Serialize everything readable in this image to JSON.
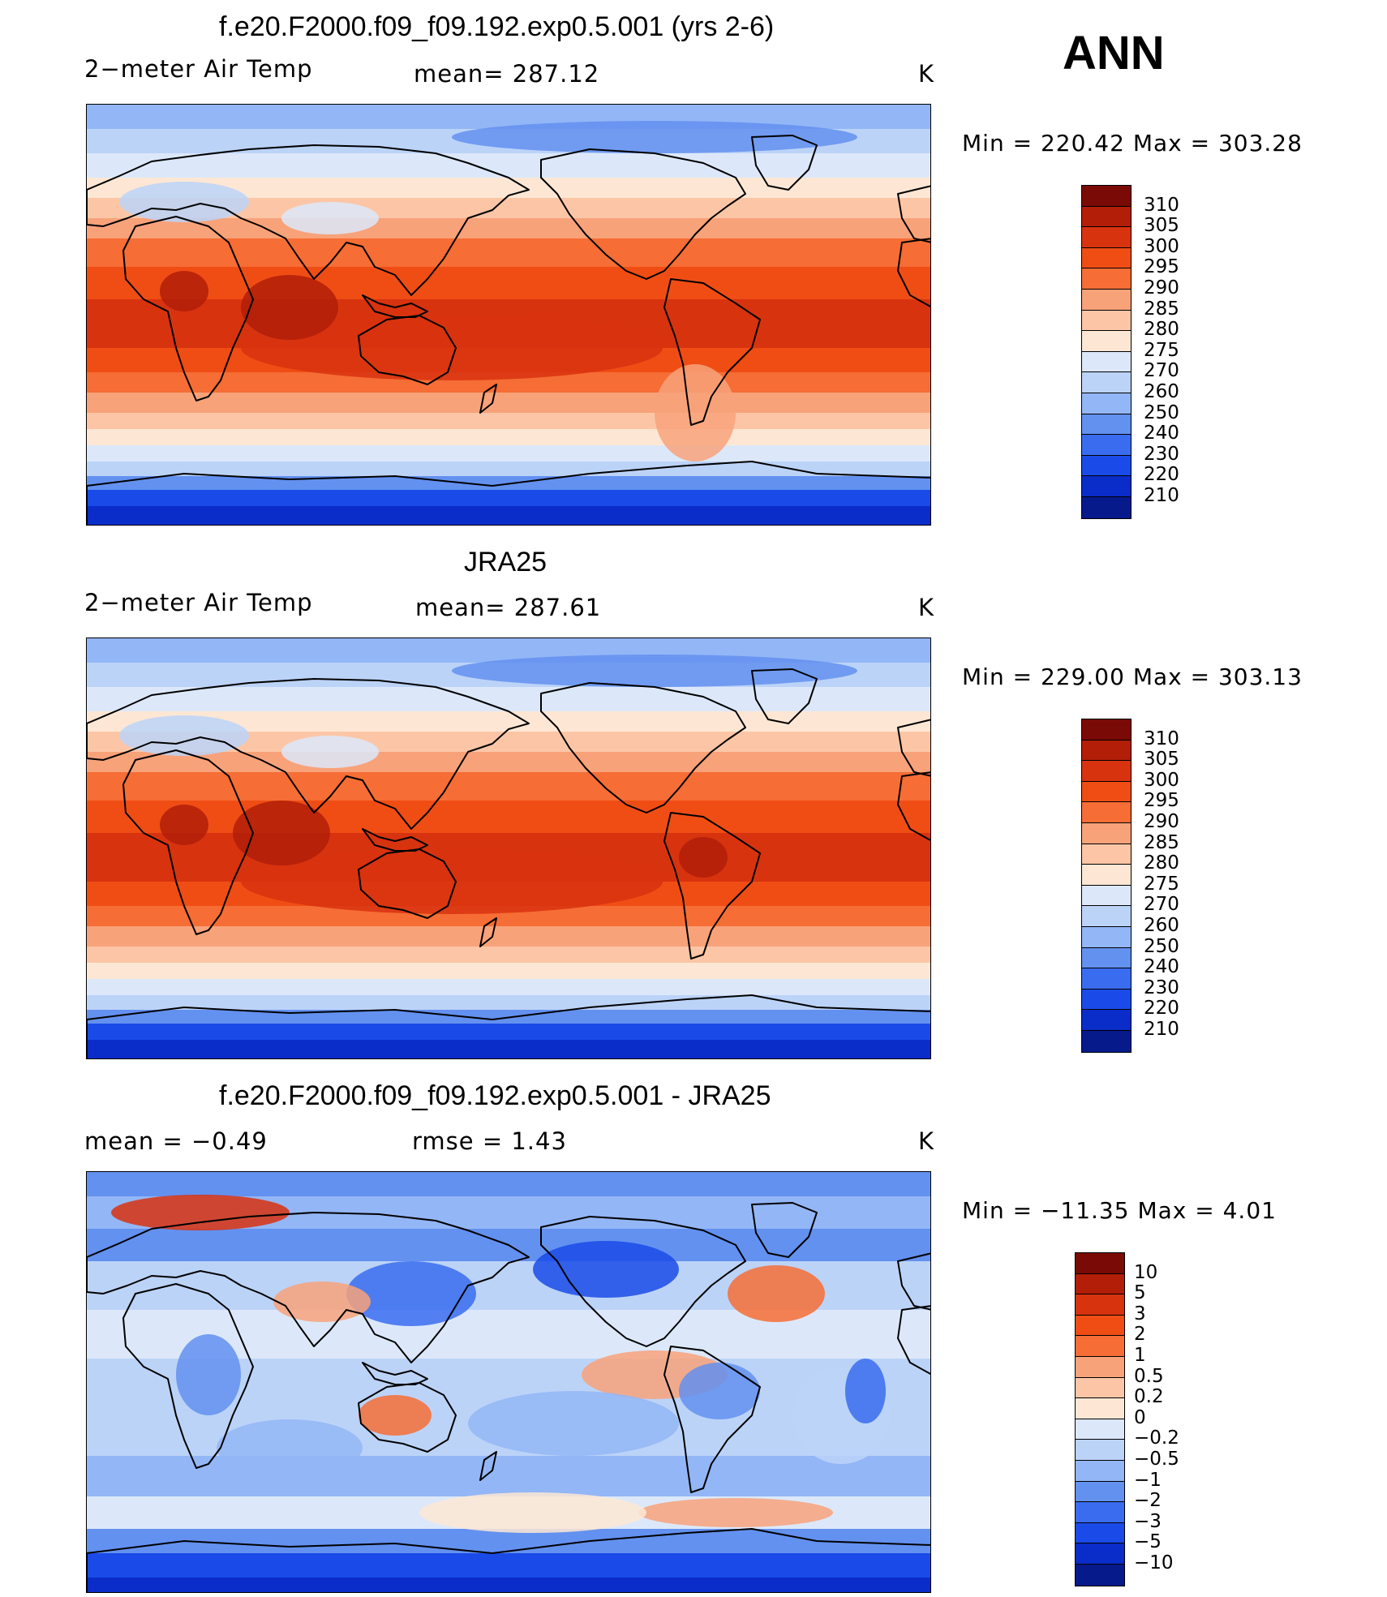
{
  "season": "ANN",
  "panels": [
    {
      "title": "f.e20.F2000.f09_f09.192.exp0.5.001 (yrs 2-6)",
      "left_label": "2−meter Air Temp",
      "center_label": "mean=  287.12",
      "units": "K",
      "minmax": "Min  =  220.42  Max  =  303.28",
      "colorbar_labels": [
        "310",
        "305",
        "300",
        "295",
        "290",
        "285",
        "280",
        "275",
        "270",
        "260",
        "250",
        "240",
        "230",
        "220",
        "210"
      ],
      "map_variant": "model"
    },
    {
      "title": "JRA25",
      "left_label": "2−meter Air Temp",
      "center_label": "mean=  287.61",
      "units": "K",
      "minmax": "Min  =  229.00  Max  =  303.13",
      "colorbar_labels": [
        "310",
        "305",
        "300",
        "295",
        "290",
        "285",
        "280",
        "275",
        "270",
        "260",
        "250",
        "240",
        "230",
        "220",
        "210"
      ],
      "map_variant": "obs"
    },
    {
      "title": "f.e20.F2000.f09_f09.192.exp0.5.001 - JRA25",
      "left_label": "mean  =    −0.49",
      "center_label": "rmse  =     1.43",
      "units": "K",
      "minmax": "Min  =  −11.35  Max  =      4.01",
      "colorbar_labels": [
        "10",
        "5",
        "3",
        "2",
        "1",
        "0.5",
        "0.2",
        "0",
        "−0.2",
        "−0.5",
        "−1",
        "−2",
        "−3",
        "−5",
        "−10"
      ],
      "map_variant": "diff"
    }
  ],
  "colors": {
    "abs_scale": [
      "#7a0a05",
      "#b21e08",
      "#d8330f",
      "#f04d15",
      "#f66d35",
      "#f8a27a",
      "#fcc6a6",
      "#fde7d4",
      "#dce8fa",
      "#bcd3f8",
      "#93b6f6",
      "#6391f0",
      "#3a6cef",
      "#1a4be8",
      "#0a2cc8",
      "#061a8c"
    ],
    "diff_scale": [
      "#7a0a05",
      "#b21e08",
      "#d8330f",
      "#f04d15",
      "#f66d35",
      "#f8a27a",
      "#fcc6a6",
      "#fde7d4",
      "#dce8fa",
      "#bcd3f8",
      "#93b6f6",
      "#6391f0",
      "#3a6cef",
      "#1a4be8",
      "#0a2cc8",
      "#061a8c"
    ]
  }
}
